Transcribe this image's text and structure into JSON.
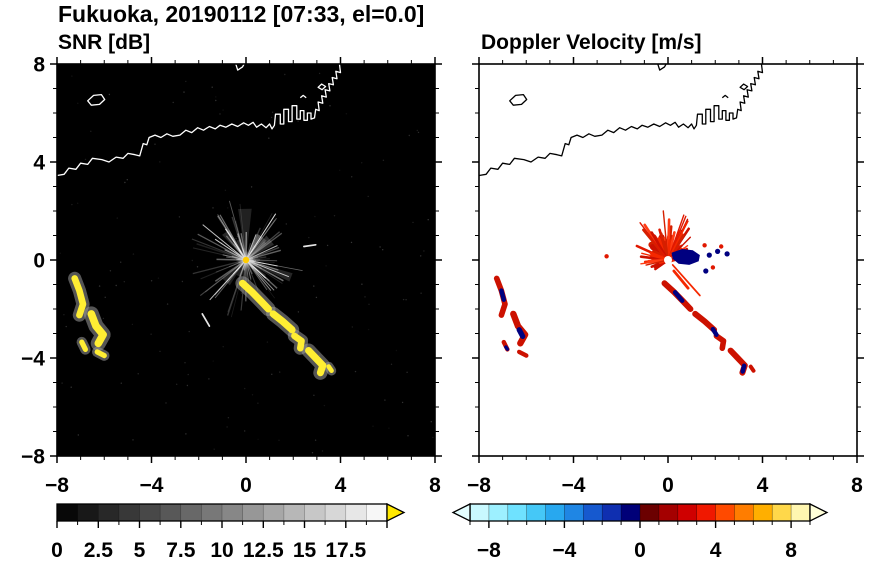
{
  "title": "Fukuoka, 20190112 [07:33, el=0.0]",
  "axis": {
    "major_ticks": [
      -8,
      -4,
      0,
      4,
      8
    ],
    "tick_labels": [
      "−8",
      "−4",
      "0",
      "4",
      "8"
    ],
    "minor_step": 1,
    "xlim": [
      -8,
      8
    ],
    "ylim": [
      -8,
      8
    ]
  },
  "render_seed": 20190112,
  "chart_data": [
    {
      "type": "heatmap",
      "panel": "SNR [dB]",
      "xlim": [
        -8,
        8
      ],
      "ylim": [
        -8,
        8
      ],
      "xticks": [
        -8,
        -4,
        0,
        4,
        8
      ],
      "yticks": [
        -8,
        -4,
        0,
        4,
        8
      ],
      "background": "#000000",
      "coast_color": "#ffffff",
      "echo_color": "#ffee33",
      "colorbar": {
        "range": [
          0,
          20
        ],
        "tick_labels": [
          "0",
          "2.5",
          "5",
          "7.5",
          "10",
          "12.5",
          "15",
          "17.5"
        ],
        "colormap": "grayscale black to white, over-range yellow"
      },
      "clutter": {
        "center": [
          0,
          0
        ],
        "rays": 90,
        "bright_rays": 14,
        "wedges": 12,
        "noise_dots": 140,
        "max_radius": 2.6
      },
      "echo_bands": [
        {
          "pts": [
            [
              -7.25,
              -0.75
            ],
            [
              -7.05,
              -1.25
            ],
            [
              -6.9,
              -1.8
            ],
            [
              -7.05,
              -2.25
            ]
          ],
          "w": 0.28
        },
        {
          "pts": [
            [
              -6.55,
              -2.2
            ],
            [
              -6.35,
              -2.7
            ],
            [
              -6.05,
              -3.05
            ],
            [
              -6.25,
              -3.4
            ]
          ],
          "w": 0.32
        },
        {
          "pts": [
            [
              -6.95,
              -3.35
            ],
            [
              -6.8,
              -3.65
            ]
          ],
          "w": 0.22
        },
        {
          "pts": [
            [
              -6.3,
              -3.75
            ],
            [
              -6.0,
              -3.9
            ]
          ],
          "w": 0.22
        },
        {
          "pts": [
            [
              -0.15,
              -0.95
            ],
            [
              0.25,
              -1.3
            ],
            [
              0.65,
              -1.7
            ],
            [
              0.95,
              -2.0
            ]
          ],
          "w": 0.3
        },
        {
          "pts": [
            [
              1.15,
              -2.2
            ],
            [
              1.55,
              -2.5
            ],
            [
              1.95,
              -2.85
            ]
          ],
          "w": 0.3
        },
        {
          "pts": [
            [
              2.05,
              -3.1
            ],
            [
              2.35,
              -3.3
            ],
            [
              2.3,
              -3.6
            ]
          ],
          "w": 0.28
        },
        {
          "pts": [
            [
              2.65,
              -3.7
            ],
            [
              2.95,
              -4.0
            ],
            [
              3.25,
              -4.3
            ],
            [
              3.15,
              -4.6
            ]
          ],
          "w": 0.3
        },
        {
          "pts": [
            [
              3.5,
              -4.35
            ],
            [
              3.62,
              -4.52
            ]
          ],
          "w": 0.2
        }
      ],
      "point_streaks": [
        {
          "pts": [
            [
              -1.85,
              -2.2
            ],
            [
              -1.55,
              -2.7
            ]
          ],
          "w": 0.07
        },
        {
          "pts": [
            [
              2.45,
              0.55
            ],
            [
              2.95,
              0.62
            ]
          ],
          "w": 0.07
        }
      ]
    },
    {
      "type": "heatmap",
      "panel": "Doppler Velocity [m/s]",
      "xlim": [
        -8,
        8
      ],
      "ylim": [
        -8,
        8
      ],
      "xticks": [
        -8,
        -4,
        0,
        4,
        8
      ],
      "yticks": [
        -8,
        -4,
        0,
        4,
        8
      ],
      "background": "#ffffff",
      "coast_color": "#000000",
      "negative_color": "#000080",
      "positive_band_color": "#cc1100",
      "fan_colors": [
        "#e01800",
        "#f52800",
        "#cc1000",
        "#ff3c14",
        "#d42000"
      ],
      "colorbar": {
        "range": [
          -9,
          9
        ],
        "tick_labels": [
          "−8",
          "−4",
          "0",
          "4",
          "8"
        ],
        "colormap": "diverging: cyan to navy (negative), dark red to pale yellow (positive)"
      },
      "outbound_fan": {
        "center": [
          0,
          0
        ],
        "angle_deg": [
          10,
          220
        ],
        "max_radius": 2.3
      },
      "inbound_blob": {
        "polygon": [
          [
            0.15,
            0.3
          ],
          [
            0.6,
            0.45
          ],
          [
            1.05,
            0.4
          ],
          [
            1.35,
            0.2
          ],
          [
            1.3,
            -0.05
          ],
          [
            0.9,
            -0.2
          ],
          [
            0.45,
            -0.15
          ],
          [
            0.2,
            0.05
          ]
        ],
        "specks": [
          [
            1.75,
            0.2
          ],
          [
            2.1,
            0.35
          ],
          [
            2.5,
            0.25
          ],
          [
            1.6,
            -0.45
          ]
        ]
      },
      "red_specks": [
        [
          1.55,
          0.6
        ],
        [
          2.25,
          0.55
        ],
        [
          1.9,
          -0.3
        ],
        [
          -2.6,
          0.15
        ]
      ],
      "extra_strokes": [
        {
          "pts": [
            [
              0.25,
              -0.45
            ],
            [
              0.85,
              -1.15
            ]
          ],
          "w": 0.12
        },
        {
          "pts": [
            [
              0.2,
              -0.2
            ],
            [
              1.35,
              -1.45
            ]
          ],
          "w": 0.07
        }
      ],
      "velocity_patches": [
        {
          "pts": [
            [
              -7.05,
              -1.25
            ],
            [
              -6.95,
              -1.62
            ]
          ],
          "w": 0.24
        },
        {
          "pts": [
            [
              -6.3,
              -2.85
            ],
            [
              -6.15,
              -3.12
            ]
          ],
          "w": 0.28
        },
        {
          "pts": [
            [
              0.3,
              -1.32
            ],
            [
              0.6,
              -1.66
            ]
          ],
          "w": 0.24
        },
        {
          "pts": [
            [
              1.9,
              -2.82
            ],
            [
              2.05,
              -3.05
            ]
          ],
          "w": 0.24
        },
        {
          "pts": [
            [
              3.22,
              -4.32
            ],
            [
              3.16,
              -4.55
            ]
          ],
          "w": 0.24
        },
        {
          "pts": [
            [
              -6.86,
              -3.55
            ],
            [
              -6.8,
              -3.64
            ]
          ],
          "w": 0.18
        }
      ]
    }
  ],
  "colorbars": {
    "snr": {
      "min": 0,
      "max": 20,
      "steps": 16,
      "labels": [
        "0",
        "2.5",
        "5",
        "7.5",
        "10",
        "12.5",
        "15",
        "17.5"
      ],
      "label_values": [
        0,
        2.5,
        5,
        7.5,
        10,
        12.5,
        15,
        17.5
      ],
      "over_arrow_color": "#ffe800"
    },
    "doppler": {
      "min": -9,
      "max": 9,
      "labels": [
        "−8",
        "−4",
        "0",
        "4",
        "8"
      ],
      "label_values": [
        -8,
        -4,
        0,
        4,
        8
      ],
      "segment_colors": [
        "#c9f9ff",
        "#9df0ff",
        "#6fe2ff",
        "#45c8f7",
        "#28a8ef",
        "#1f86e4",
        "#1659cf",
        "#0f2fb0",
        "#000078",
        "#6b0000",
        "#a40000",
        "#cf0000",
        "#f01800",
        "#ff4a00",
        "#ff7d00",
        "#ffaf00",
        "#ffd84a",
        "#fff6b0"
      ],
      "under_arrow_color": "#e4feff",
      "over_arrow_color": "#ffffd9"
    }
  },
  "map": {
    "coastline": [
      [
        -8,
        3.45
      ],
      [
        -7.7,
        3.5
      ],
      [
        -7.5,
        3.75
      ],
      [
        -7.2,
        3.7
      ],
      [
        -7,
        3.95
      ],
      [
        -6.7,
        3.9
      ],
      [
        -6.5,
        4.15
      ],
      [
        -6.1,
        4.1
      ],
      [
        -5.8,
        4
      ],
      [
        -5.5,
        4.2
      ],
      [
        -5.2,
        4.15
      ],
      [
        -5,
        4.35
      ],
      [
        -4.7,
        4.3
      ],
      [
        -4.5,
        4.25
      ],
      [
        -4.35,
        4.75
      ],
      [
        -4.2,
        4.7
      ],
      [
        -4.1,
        5
      ],
      [
        -3.85,
        5.1
      ],
      [
        -3.6,
        5
      ],
      [
        -3.35,
        5.15
      ],
      [
        -3.1,
        5.05
      ],
      [
        -2.8,
        5.1
      ],
      [
        -2.55,
        5.3
      ],
      [
        -2.3,
        5.2
      ],
      [
        -2.05,
        5.4
      ],
      [
        -1.8,
        5.3
      ],
      [
        -1.55,
        5.45
      ],
      [
        -1.3,
        5.35
      ],
      [
        -1.1,
        5.5
      ],
      [
        -0.85,
        5.42
      ],
      [
        -0.6,
        5.55
      ],
      [
        -0.35,
        5.45
      ],
      [
        -0.1,
        5.6
      ],
      [
        0.1,
        5.5
      ],
      [
        0.3,
        5.62
      ],
      [
        0.45,
        5.42
      ],
      [
        0.65,
        5.55
      ],
      [
        0.85,
        5.4
      ],
      [
        1,
        5.55
      ],
      [
        1.1,
        5.35
      ],
      [
        1.2,
        5.5
      ],
      [
        1.25,
        5.95
      ],
      [
        1.45,
        5.95
      ],
      [
        1.45,
        5.55
      ],
      [
        1.6,
        5.55
      ],
      [
        1.6,
        6.15
      ],
      [
        1.8,
        6.15
      ],
      [
        1.8,
        5.65
      ],
      [
        1.95,
        5.65
      ],
      [
        1.95,
        6.3
      ],
      [
        2.15,
        6.3
      ],
      [
        2.15,
        5.75
      ],
      [
        2.3,
        5.75
      ],
      [
        2.3,
        6.1
      ],
      [
        2.45,
        6.1
      ],
      [
        2.45,
        5.7
      ],
      [
        2.6,
        5.7
      ],
      [
        2.6,
        6
      ],
      [
        2.75,
        6
      ],
      [
        2.75,
        5.75
      ],
      [
        2.9,
        5.8
      ],
      [
        2.95,
        6.15
      ],
      [
        3.1,
        6.1
      ],
      [
        3.05,
        6.45
      ],
      [
        3.25,
        6.4
      ],
      [
        3.2,
        6.7
      ],
      [
        3.4,
        6.65
      ],
      [
        3.35,
        6.95
      ],
      [
        3.55,
        6.9
      ],
      [
        3.5,
        7.2
      ],
      [
        3.7,
        7.15
      ],
      [
        3.65,
        7.45
      ],
      [
        3.85,
        7.4
      ],
      [
        3.8,
        7.7
      ],
      [
        4,
        7.65
      ],
      [
        3.95,
        8.05
      ]
    ],
    "islands": [
      [
        [
          -6.7,
          6.5
        ],
        [
          -6.45,
          6.72
        ],
        [
          -6.12,
          6.75
        ],
        [
          -5.98,
          6.55
        ],
        [
          -6.2,
          6.35
        ],
        [
          -6.55,
          6.32
        ]
      ],
      [
        [
          3.05,
          7.05
        ],
        [
          3.2,
          7.18
        ],
        [
          3.37,
          7.08
        ],
        [
          3.22,
          6.95
        ]
      ]
    ],
    "fragments": [
      [
        [
          -0.45,
          8.05
        ],
        [
          -0.35,
          7.75
        ],
        [
          -0.15,
          7.88
        ],
        [
          -0.05,
          8.05
        ]
      ],
      [
        [
          2.3,
          6.62
        ],
        [
          2.42,
          6.72
        ],
        [
          2.55,
          6.62
        ]
      ]
    ]
  }
}
